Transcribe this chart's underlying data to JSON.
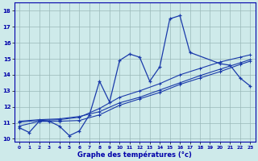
{
  "xlabel": "Graphe des températures (°c)",
  "background_color": "#ceeaea",
  "grid_color": "#9ab8b8",
  "line_color": "#1a3aaa",
  "xlim": [
    -0.5,
    23.5
  ],
  "ylim": [
    9.8,
    18.5
  ],
  "xticks": [
    0,
    1,
    2,
    3,
    4,
    5,
    6,
    7,
    8,
    9,
    10,
    11,
    12,
    13,
    14,
    15,
    16,
    17,
    18,
    19,
    20,
    21,
    22,
    23
  ],
  "yticks": [
    10,
    11,
    12,
    13,
    14,
    15,
    16,
    17,
    18
  ],
  "main_line": {
    "x": [
      0,
      1,
      2,
      3,
      4,
      5,
      6,
      7,
      8,
      9,
      10,
      11,
      12,
      13,
      14,
      15,
      16,
      17,
      20,
      21,
      22,
      23
    ],
    "y": [
      10.7,
      10.4,
      11.1,
      11.1,
      10.8,
      10.2,
      10.5,
      11.5,
      13.6,
      12.3,
      14.9,
      15.3,
      15.1,
      13.6,
      14.5,
      17.5,
      17.7,
      15.4,
      14.7,
      14.6,
      13.8,
      13.3
    ]
  },
  "trend1": {
    "x": [
      0,
      2,
      4,
      6,
      8,
      10,
      12,
      14,
      16,
      18,
      20,
      22,
      23
    ],
    "y": [
      10.8,
      11.1,
      11.1,
      11.15,
      11.5,
      12.1,
      12.5,
      12.9,
      13.4,
      13.8,
      14.2,
      14.65,
      14.85
    ]
  },
  "trend2": {
    "x": [
      0,
      2,
      4,
      6,
      8,
      10,
      12,
      14,
      16,
      18,
      20,
      22,
      23
    ],
    "y": [
      11.1,
      11.2,
      11.25,
      11.4,
      11.7,
      12.25,
      12.6,
      13.05,
      13.5,
      13.95,
      14.35,
      14.75,
      14.95
    ]
  },
  "trend3": {
    "x": [
      0,
      2,
      4,
      6,
      8,
      10,
      12,
      14,
      16,
      18,
      20,
      22,
      23
    ],
    "y": [
      11.05,
      11.15,
      11.2,
      11.35,
      11.9,
      12.6,
      13.0,
      13.45,
      14.0,
      14.4,
      14.8,
      15.1,
      15.25
    ]
  }
}
